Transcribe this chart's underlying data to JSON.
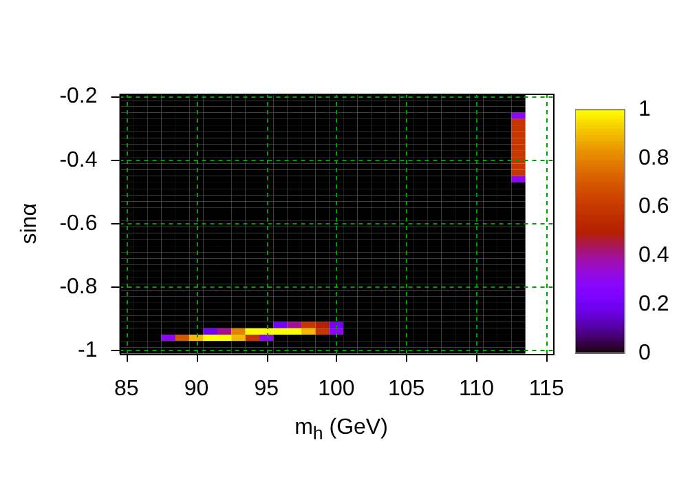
{
  "chart_data": {
    "type": "heatmap",
    "xlabel": "m$_{h}$ (GeV)",
    "ylabel": "sinα",
    "categories": [
      "85",
      null,
      null,
      null,
      null,
      "90",
      null,
      null,
      null,
      null,
      "95",
      null,
      null,
      null,
      null,
      "100",
      null,
      null,
      null,
      null,
      "105",
      null,
      null,
      null,
      null,
      "110",
      null,
      null,
      null,
      null,
      "115"
    ],
    "y_categories": [
      "-0.2",
      null,
      null,
      null,
      null,
      null,
      null,
      null,
      null,
      null,
      "-0.4",
      null,
      null,
      null,
      null,
      null,
      null,
      null,
      null,
      null,
      "-0.6",
      null,
      null,
      null,
      null,
      null,
      null,
      null,
      null,
      null,
      "-0.8",
      null,
      null,
      null,
      null,
      null,
      null,
      null,
      null,
      null,
      "-1"
    ],
    "grid": true,
    "clim": [
      0,
      1
    ],
    "cticks": [
      0,
      0.2,
      0.4,
      0.6,
      0.8,
      1
    ],
    "cells": [
      [
        0,
        0,
        0,
        0,
        0,
        0,
        0,
        0,
        0,
        0,
        0,
        0,
        0,
        0,
        0,
        0,
        0,
        0,
        0,
        0,
        0,
        0,
        0,
        0,
        0,
        0,
        0,
        0,
        0,
        null,
        null
      ],
      [
        0,
        0,
        0,
        0,
        0,
        0,
        0,
        0,
        0,
        0,
        0,
        0,
        0,
        0,
        0,
        0,
        0,
        0,
        0,
        0,
        0,
        0,
        0,
        0,
        0,
        0,
        0,
        0,
        0,
        null,
        null
      ],
      [
        0,
        0,
        0,
        0,
        0,
        0,
        0,
        0,
        0,
        0,
        0,
        0,
        0,
        0,
        0,
        0,
        0,
        0,
        0,
        0,
        0,
        0,
        0,
        0,
        0,
        0,
        0,
        0,
        0,
        null,
        null
      ],
      [
        0,
        0,
        0,
        0,
        0,
        0,
        0,
        0,
        0,
        0,
        0,
        0,
        0,
        0,
        0,
        0,
        0,
        0,
        0,
        0,
        0,
        0,
        0,
        0,
        0,
        0,
        0,
        0,
        0.3,
        null,
        null
      ],
      [
        0,
        0,
        0,
        0,
        0,
        0,
        0,
        0,
        0,
        0,
        0,
        0,
        0,
        0,
        0,
        0,
        0,
        0,
        0,
        0,
        0,
        0,
        0,
        0,
        0,
        0,
        0,
        0,
        0.6,
        null,
        null
      ],
      [
        0,
        0,
        0,
        0,
        0,
        0,
        0,
        0,
        0,
        0,
        0,
        0,
        0,
        0,
        0,
        0,
        0,
        0,
        0,
        0,
        0,
        0,
        0,
        0,
        0,
        0,
        0,
        0,
        0.6,
        null,
        null
      ],
      [
        0,
        0,
        0,
        0,
        0,
        0,
        0,
        0,
        0,
        0,
        0,
        0,
        0,
        0,
        0,
        0,
        0,
        0,
        0,
        0,
        0,
        0,
        0,
        0,
        0,
        0,
        0,
        0,
        0.6,
        null,
        null
      ],
      [
        0,
        0,
        0,
        0,
        0,
        0,
        0,
        0,
        0,
        0,
        0,
        0,
        0,
        0,
        0,
        0,
        0,
        0,
        0,
        0,
        0,
        0,
        0,
        0,
        0,
        0,
        0,
        0,
        0.6,
        null,
        null
      ],
      [
        0,
        0,
        0,
        0,
        0,
        0,
        0,
        0,
        0,
        0,
        0,
        0,
        0,
        0,
        0,
        0,
        0,
        0,
        0,
        0,
        0,
        0,
        0,
        0,
        0,
        0,
        0,
        0,
        0.6,
        null,
        null
      ],
      [
        0,
        0,
        0,
        0,
        0,
        0,
        0,
        0,
        0,
        0,
        0,
        0,
        0,
        0,
        0,
        0,
        0,
        0,
        0,
        0,
        0,
        0,
        0,
        0,
        0,
        0,
        0,
        0,
        0.6,
        null,
        null
      ],
      [
        0,
        0,
        0,
        0,
        0,
        0,
        0,
        0,
        0,
        0,
        0,
        0,
        0,
        0,
        0,
        0,
        0,
        0,
        0,
        0,
        0,
        0,
        0,
        0,
        0,
        0,
        0,
        0,
        0.6,
        null,
        null
      ],
      [
        0,
        0,
        0,
        0,
        0,
        0,
        0,
        0,
        0,
        0,
        0,
        0,
        0,
        0,
        0,
        0,
        0,
        0,
        0,
        0,
        0,
        0,
        0,
        0,
        0,
        0,
        0,
        0,
        0.6,
        null,
        null
      ],
      [
        0,
        0,
        0,
        0,
        0,
        0,
        0,
        0,
        0,
        0,
        0,
        0,
        0,
        0,
        0,
        0,
        0,
        0,
        0,
        0,
        0,
        0,
        0,
        0,
        0,
        0,
        0,
        0,
        0.6,
        null,
        null
      ],
      [
        0,
        0,
        0,
        0,
        0,
        0,
        0,
        0,
        0,
        0,
        0,
        0,
        0,
        0,
        0,
        0,
        0,
        0,
        0,
        0,
        0,
        0,
        0,
        0,
        0,
        0,
        0,
        0,
        0.3,
        null,
        null
      ],
      [
        0,
        0,
        0,
        0,
        0,
        0,
        0,
        0,
        0,
        0,
        0,
        0,
        0,
        0,
        0,
        0,
        0,
        0,
        0,
        0,
        0,
        0,
        0,
        0,
        0,
        0,
        0,
        0,
        0,
        null,
        null
      ],
      [
        0,
        0,
        0,
        0,
        0,
        0,
        0,
        0,
        0,
        0,
        0,
        0,
        0,
        0,
        0,
        0,
        0,
        0,
        0,
        0,
        0,
        0,
        0,
        0,
        0,
        0,
        0,
        0,
        0,
        null,
        null
      ],
      [
        0,
        0,
        0,
        0,
        0,
        0,
        0,
        0,
        0,
        0,
        0,
        0,
        0,
        0,
        0,
        0,
        0,
        0,
        0,
        0,
        0,
        0,
        0,
        0,
        0,
        0,
        0,
        0,
        0,
        null,
        null
      ],
      [
        0,
        0,
        0,
        0,
        0,
        0,
        0,
        0,
        0,
        0,
        0,
        0,
        0,
        0,
        0,
        0,
        0,
        0,
        0,
        0,
        0,
        0,
        0,
        0,
        0,
        0,
        0,
        0,
        0,
        null,
        null
      ],
      [
        0,
        0,
        0,
        0,
        0,
        0,
        0,
        0,
        0,
        0,
        0,
        0,
        0,
        0,
        0,
        0,
        0,
        0,
        0,
        0,
        0,
        0,
        0,
        0,
        0,
        0,
        0,
        0,
        0,
        null,
        null
      ],
      [
        0,
        0,
        0,
        0,
        0,
        0,
        0,
        0,
        0,
        0,
        0,
        0,
        0,
        0,
        0,
        0,
        0,
        0,
        0,
        0,
        0,
        0,
        0,
        0,
        0,
        0,
        0,
        0,
        0,
        null,
        null
      ],
      [
        0,
        0,
        0,
        0,
        0,
        0,
        0,
        0,
        0,
        0,
        0,
        0,
        0,
        0,
        0,
        0,
        0,
        0,
        0,
        0,
        0,
        0,
        0,
        0,
        0,
        0,
        0,
        0,
        0,
        null,
        null
      ],
      [
        0,
        0,
        0,
        0,
        0,
        0,
        0,
        0,
        0,
        0,
        0,
        0,
        0,
        0,
        0,
        0,
        0,
        0,
        0,
        0,
        0,
        0,
        0,
        0,
        0,
        0,
        0,
        0,
        0,
        null,
        null
      ],
      [
        0,
        0,
        0,
        0,
        0,
        0,
        0,
        0,
        0,
        0,
        0,
        0,
        0,
        0,
        0,
        0,
        0,
        0,
        0,
        0,
        0,
        0,
        0,
        0,
        0,
        0,
        0,
        0,
        0,
        null,
        null
      ],
      [
        0,
        0,
        0,
        0,
        0,
        0,
        0,
        0,
        0,
        0,
        0,
        0,
        0,
        0,
        0,
        0,
        0,
        0,
        0,
        0,
        0,
        0,
        0,
        0,
        0,
        0,
        0,
        0,
        0,
        null,
        null
      ],
      [
        0,
        0,
        0,
        0,
        0,
        0,
        0,
        0,
        0,
        0,
        0,
        0,
        0,
        0,
        0,
        0,
        0,
        0,
        0,
        0,
        0,
        0,
        0,
        0,
        0,
        0,
        0,
        0,
        0,
        null,
        null
      ],
      [
        0,
        0,
        0,
        0,
        0,
        0,
        0,
        0,
        0,
        0,
        0,
        0,
        0,
        0,
        0,
        0,
        0,
        0,
        0,
        0,
        0,
        0,
        0,
        0,
        0,
        0,
        0,
        0,
        0,
        null,
        null
      ],
      [
        0,
        0,
        0,
        0,
        0,
        0,
        0,
        0,
        0,
        0,
        0,
        0,
        0,
        0,
        0,
        0,
        0,
        0,
        0,
        0,
        0,
        0,
        0,
        0,
        0,
        0,
        0,
        0,
        0,
        null,
        null
      ],
      [
        0,
        0,
        0,
        0,
        0,
        0,
        0,
        0,
        0,
        0,
        0,
        0,
        0,
        0,
        0,
        0,
        0,
        0,
        0,
        0,
        0,
        0,
        0,
        0,
        0,
        0,
        0,
        0,
        0,
        null,
        null
      ],
      [
        0,
        0,
        0,
        0,
        0,
        0,
        0,
        0,
        0,
        0,
        0,
        0,
        0,
        0,
        0,
        0,
        0,
        0,
        0,
        0,
        0,
        0,
        0,
        0,
        0,
        0,
        0,
        0,
        0,
        null,
        null
      ],
      [
        0,
        0,
        0,
        0,
        0,
        0,
        0,
        0,
        0,
        0,
        0,
        0,
        0,
        0,
        0,
        0,
        0,
        0,
        0,
        0,
        0,
        0,
        0,
        0,
        0,
        0,
        0,
        0,
        0,
        null,
        null
      ],
      [
        0,
        0,
        0,
        0,
        0,
        0,
        0,
        0,
        0,
        0,
        0,
        0,
        0,
        0,
        0,
        0,
        0,
        0,
        0,
        0,
        0,
        0,
        0,
        0,
        0,
        0,
        0,
        0,
        0,
        null,
        null
      ],
      [
        0,
        0,
        0,
        0,
        0,
        0,
        0,
        0,
        0,
        0,
        0,
        0,
        0,
        0,
        0,
        0,
        0,
        0,
        0,
        0,
        0,
        0,
        0,
        0,
        0,
        0,
        0,
        0,
        0,
        null,
        null
      ],
      [
        0,
        0,
        0,
        0,
        0,
        0,
        0,
        0,
        0,
        0,
        0,
        0,
        0,
        0,
        0,
        0,
        0,
        0,
        0,
        0,
        0,
        0,
        0,
        0,
        0,
        0,
        0,
        0,
        0,
        null,
        null
      ],
      [
        0,
        0,
        0,
        0,
        0,
        0,
        0,
        0,
        0,
        0,
        0,
        0,
        0,
        0,
        0,
        0,
        0,
        0,
        0,
        0,
        0,
        0,
        0,
        0,
        0,
        0,
        0,
        0,
        0,
        null,
        null
      ],
      [
        0,
        0,
        0,
        0,
        0,
        0,
        0,
        0,
        0,
        0,
        0,
        0,
        0,
        0,
        0,
        0,
        0,
        0,
        0,
        0,
        0,
        0,
        0,
        0,
        0,
        0,
        0,
        0,
        0,
        null,
        null
      ],
      [
        0,
        0,
        0,
        0,
        0,
        0,
        0,
        0,
        0,
        0,
        0,
        0,
        0,
        0,
        0,
        0,
        0,
        0,
        0,
        0,
        0,
        0,
        0,
        0,
        0,
        0,
        0,
        0,
        0,
        null,
        null
      ],
      [
        0,
        0,
        0,
        0,
        0,
        0,
        0,
        0,
        0,
        0,
        0,
        0.2,
        0.4,
        0.6,
        0.5,
        0.2,
        0,
        0,
        0,
        0,
        0,
        0,
        0,
        0,
        0,
        0,
        0,
        0,
        0,
        null,
        null
      ],
      [
        0,
        0,
        0,
        0,
        0,
        0,
        0.2,
        0.4,
        0.8,
        1,
        1,
        1,
        1,
        0.9,
        0.6,
        0.3,
        0,
        0,
        0,
        0,
        0,
        0,
        0,
        0,
        0,
        0,
        0,
        0,
        0,
        null,
        null
      ],
      [
        0,
        0,
        0,
        0.3,
        0.7,
        0.9,
        1,
        1,
        0.9,
        0.6,
        0.3,
        0,
        0,
        0,
        0,
        0,
        0,
        0,
        0,
        0,
        0,
        0,
        0,
        0,
        0,
        0,
        0,
        0,
        0,
        null,
        null
      ],
      [
        0,
        0,
        0,
        0,
        0,
        0,
        0,
        0,
        0,
        0,
        0,
        0,
        0,
        0,
        0,
        0,
        0,
        0,
        0,
        0,
        0,
        0,
        0,
        0,
        0,
        0,
        0,
        0,
        0,
        null,
        null
      ],
      [
        0,
        0,
        0,
        0,
        0,
        0,
        0,
        0,
        0,
        0,
        0,
        0,
        0,
        0,
        0,
        0,
        0,
        0,
        0,
        0,
        0,
        0,
        0,
        0,
        0,
        0,
        0,
        0,
        0,
        null,
        null
      ]
    ]
  }
}
